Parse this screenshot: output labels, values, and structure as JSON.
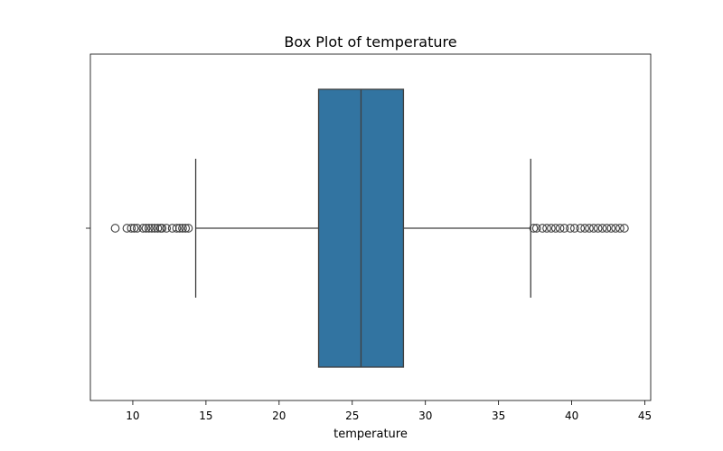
{
  "chart_data": {
    "type": "box",
    "title": "Box Plot of temperature",
    "xlabel": "temperature",
    "ylabel": "",
    "xlim": [
      7.1,
      45.4
    ],
    "xticks": [
      10,
      15,
      20,
      25,
      30,
      35,
      40,
      45
    ],
    "orientation": "horizontal",
    "grid": false,
    "box": {
      "whisker_low": 14.3,
      "q1": 22.7,
      "median": 25.6,
      "q3": 28.5,
      "whisker_high": 37.2
    },
    "outliers": [
      8.8,
      9.6,
      9.9,
      10.1,
      10.3,
      10.7,
      10.9,
      11.1,
      11.3,
      11.5,
      11.7,
      11.9,
      12.0,
      12.3,
      12.7,
      13.0,
      13.2,
      13.4,
      13.6,
      13.8,
      37.4,
      37.6,
      38.0,
      38.3,
      38.6,
      38.9,
      39.2,
      39.5,
      39.9,
      40.2,
      40.6,
      40.9,
      41.2,
      41.5,
      41.8,
      42.1,
      42.4,
      42.7,
      43.0,
      43.3,
      43.6
    ],
    "colors": {
      "box_fill": "#3274a1",
      "line": "#3f3f3f"
    }
  }
}
